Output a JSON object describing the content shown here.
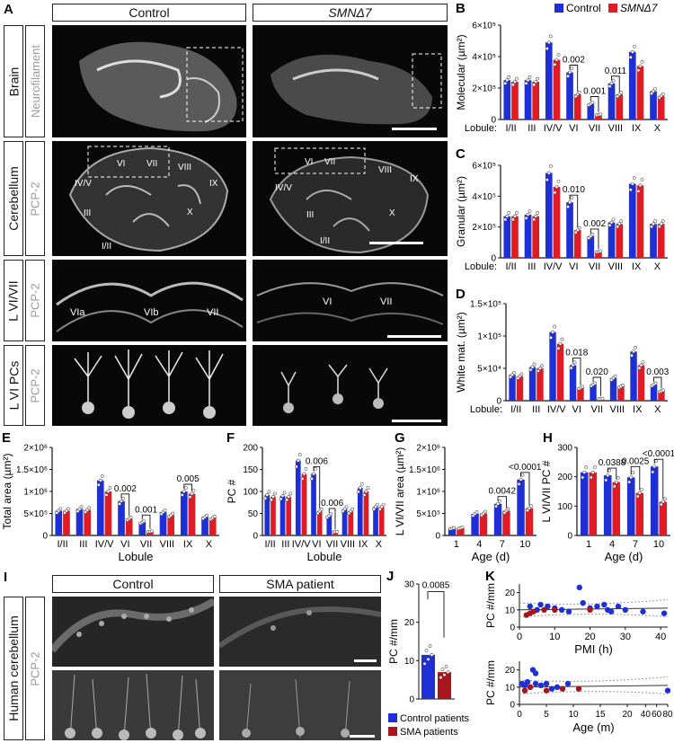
{
  "panels": {
    "A": {
      "label": "A",
      "columns": [
        "Control",
        "SMNΔ7"
      ],
      "rows": [
        {
          "region": "Brain",
          "stain": "Neurofilament"
        },
        {
          "region": "Cerebellum",
          "stain": "PCP-2"
        },
        {
          "region": "L VI/VII",
          "stain": "PCP-2"
        },
        {
          "region": "L VI PCs",
          "stain": "PCP-2"
        }
      ],
      "cerebellum_control_labels": [
        "VI",
        "VII",
        "VIII",
        "IV/V",
        "IX",
        "III",
        "X",
        "I/II"
      ],
      "cerebellum_smn_labels": [
        "VI",
        "VII",
        "VIII",
        "IV/V",
        "IX",
        "III",
        "X",
        "I/II"
      ],
      "lobule_control_labels": [
        "VIa",
        "VIb",
        "VII"
      ],
      "lobule_smn_labels": [
        "VI",
        "VII"
      ]
    },
    "I": {
      "label": "I",
      "columns": [
        "Control",
        "SMA patient"
      ],
      "region": "Human cerebellum",
      "stain": "PCP-2"
    }
  },
  "colors": {
    "control": "#1f2fd6",
    "smn": "#e01b24",
    "sma_patient": "#a8161b"
  },
  "chart_data": [
    {
      "id": "B",
      "label": "B",
      "type": "bar",
      "legend": [
        "Control",
        "SMNΔ7"
      ],
      "ylabel": "Molecular (µm²)",
      "xlabel_prefix": "Lobule:",
      "categories": [
        "I/II",
        "III",
        "IV/V",
        "VI",
        "VII",
        "VIII",
        "IX",
        "X"
      ],
      "yticks": [
        "0",
        "2×10⁵",
        "4×10⁵",
        "6×10⁵"
      ],
      "ylim": [
        0,
        600000
      ],
      "series": [
        {
          "name": "Control",
          "values": [
            250000,
            250000,
            490000,
            300000,
            100000,
            230000,
            430000,
            180000
          ]
        },
        {
          "name": "SMNΔ7",
          "values": [
            240000,
            240000,
            380000,
            160000,
            30000,
            160000,
            340000,
            150000
          ]
        }
      ],
      "pvalues": [
        {
          "cat": 3,
          "text": "0.002"
        },
        {
          "cat": 4,
          "text": "0.001"
        },
        {
          "cat": 5,
          "text": "0.011"
        }
      ]
    },
    {
      "id": "C",
      "label": "C",
      "type": "bar",
      "ylabel": "Granular (µm²)",
      "xlabel_prefix": "Lobule:",
      "categories": [
        "I/II",
        "III",
        "IV/V",
        "VI",
        "VII",
        "VIII",
        "IX",
        "X"
      ],
      "yticks": [
        "0",
        "2×10⁵",
        "4×10⁵",
        "6×10⁵"
      ],
      "ylim": [
        0,
        600000
      ],
      "series": [
        {
          "name": "Control",
          "values": [
            270000,
            280000,
            550000,
            360000,
            140000,
            230000,
            480000,
            220000
          ]
        },
        {
          "name": "SMNΔ7",
          "values": [
            270000,
            270000,
            460000,
            180000,
            40000,
            220000,
            470000,
            220000
          ]
        }
      ],
      "pvalues": [
        {
          "cat": 3,
          "text": "0.010"
        },
        {
          "cat": 4,
          "text": "0.002"
        }
      ]
    },
    {
      "id": "D",
      "label": "D",
      "type": "bar",
      "ylabel": "White mat. (µm²)",
      "xlabel_prefix": "Lobule:",
      "categories": [
        "I/II",
        "III",
        "IV/V",
        "VI",
        "VII",
        "VIII",
        "IX",
        "X"
      ],
      "yticks": [
        "0",
        "5×10⁴",
        "1×10⁵",
        "1.5×10⁵"
      ],
      "ylim": [
        0,
        150000
      ],
      "series": [
        {
          "name": "Control",
          "values": [
            40000,
            52000,
            106000,
            55000,
            25000,
            35000,
            76000,
            25000
          ]
        },
        {
          "name": "SMNΔ7",
          "values": [
            38000,
            50000,
            88000,
            20000,
            3000,
            22000,
            55000,
            15000
          ]
        }
      ],
      "pvalues": [
        {
          "cat": 3,
          "text": "0.018"
        },
        {
          "cat": 4,
          "text": "0.020"
        },
        {
          "cat": 7,
          "text": "0.003"
        }
      ]
    },
    {
      "id": "E",
      "label": "E",
      "type": "bar",
      "ylabel": "Total area (µm²)",
      "xlabel": "Lobule",
      "categories": [
        "I/II",
        "III",
        "IV/V",
        "VI",
        "VII",
        "VIII",
        "IX",
        "X"
      ],
      "yticks": [
        "0",
        "5×10⁵",
        "1×10⁶",
        "1.5×10⁶",
        "2×10⁶"
      ],
      "ylim": [
        0,
        2000000
      ],
      "series": [
        {
          "name": "Control",
          "values": [
            560000,
            600000,
            1250000,
            780000,
            300000,
            530000,
            1000000,
            420000
          ]
        },
        {
          "name": "SMNΔ7",
          "values": [
            560000,
            580000,
            1000000,
            380000,
            90000,
            460000,
            950000,
            400000
          ]
        }
      ],
      "pvalues": [
        {
          "cat": 3,
          "text": "0.002"
        },
        {
          "cat": 4,
          "text": "0.001"
        },
        {
          "cat": 6,
          "text": "0.005"
        }
      ]
    },
    {
      "id": "F",
      "label": "F",
      "type": "bar",
      "ylabel": "PC #",
      "xlabel": "Lobule",
      "categories": [
        "I/II",
        "III",
        "IV/V",
        "VI",
        "VII",
        "VIII",
        "IX",
        "X"
      ],
      "yticks": [
        "0",
        "50",
        "100",
        "150",
        "200"
      ],
      "ylim": [
        0,
        200
      ],
      "series": [
        {
          "name": "Control",
          "values": [
            92,
            90,
            170,
            140,
            45,
            60,
            108,
            65
          ]
        },
        {
          "name": "SMNΔ7",
          "values": [
            88,
            88,
            140,
            55,
            8,
            55,
            100,
            65
          ]
        }
      ],
      "pvalues": [
        {
          "cat": 3,
          "text": "0.006"
        },
        {
          "cat": 4,
          "text": "0.006"
        }
      ]
    },
    {
      "id": "G",
      "label": "G",
      "type": "bar",
      "ylabel": "L VI/VII area (µm²)",
      "xlabel": "Age (d)",
      "categories": [
        "1",
        "4",
        "7",
        "10"
      ],
      "yticks": [
        "0",
        "5×10⁵",
        "1×10⁶",
        "1.5×10⁶",
        "2×10⁶"
      ],
      "ylim": [
        0,
        2000000
      ],
      "series": [
        {
          "name": "Control",
          "values": [
            160000,
            490000,
            720000,
            1270000
          ]
        },
        {
          "name": "SMNΔ7",
          "values": [
            170000,
            500000,
            560000,
            620000
          ]
        }
      ],
      "pvalues": [
        {
          "cat": 2,
          "text": "0.0042"
        },
        {
          "cat": 3,
          "text": "<0.0001"
        }
      ]
    },
    {
      "id": "H",
      "label": "H",
      "type": "bar",
      "ylabel": "L VI/VII PC #",
      "xlabel": "Age (d)",
      "categories": [
        "1",
        "4",
        "7",
        "10"
      ],
      "yticks": [
        "0",
        "100",
        "200",
        "300"
      ],
      "ylim": [
        0,
        300
      ],
      "series": [
        {
          "name": "Control",
          "values": [
            215,
            205,
            198,
            235
          ]
        },
        {
          "name": "SMNΔ7",
          "values": [
            215,
            182,
            145,
            115
          ]
        }
      ],
      "pvalues": [
        {
          "cat": 1,
          "text": "0.0388"
        },
        {
          "cat": 2,
          "text": "0.0025"
        },
        {
          "cat": 3,
          "text": "<0.0001"
        }
      ]
    },
    {
      "id": "J",
      "label": "J",
      "type": "bar",
      "ylabel": "PC #/mm",
      "categories": [
        "Control patients",
        "SMA patients"
      ],
      "yticks": [
        "0",
        "5",
        "10",
        "15",
        "20",
        "25",
        "30"
      ],
      "ylim": [
        0,
        30
      ],
      "values": [
        11.5,
        7.0
      ],
      "pvalue": "0.0085",
      "legend": [
        "Control patients",
        "SMA patients"
      ]
    },
    {
      "id": "K1",
      "label": "K",
      "type": "scatter",
      "ylabel": "PC #/mm",
      "xlabel": "PMI (h)",
      "xticks": [
        "0",
        "10",
        "20",
        "30",
        "40"
      ],
      "yticks": [
        "0",
        "10",
        "20"
      ],
      "xlim": [
        0,
        42
      ],
      "ylim": [
        0,
        25
      ],
      "series": [
        {
          "name": "Control patients",
          "points": [
            [
              3,
              12
            ],
            [
              5,
              10
            ],
            [
              6,
              13
            ],
            [
              8,
              12
            ],
            [
              10,
              11
            ],
            [
              12,
              10
            ],
            [
              14,
              9
            ],
            [
              17,
              23
            ],
            [
              18,
              14
            ],
            [
              20,
              11
            ],
            [
              22,
              12
            ],
            [
              24,
              13
            ],
            [
              25,
              10
            ],
            [
              26,
              9
            ],
            [
              28,
              12
            ],
            [
              30,
              10
            ],
            [
              35,
              9
            ],
            [
              41,
              8
            ]
          ]
        },
        {
          "name": "SMA patients",
          "points": [
            [
              2,
              7
            ],
            [
              3,
              8
            ],
            [
              4,
              9
            ],
            [
              7,
              10
            ],
            [
              10,
              10
            ],
            [
              20,
              10
            ]
          ]
        }
      ]
    },
    {
      "id": "K2",
      "type": "scatter",
      "ylabel": "PC #/mm",
      "xlabel": "Age (m)",
      "xticks": [
        "0",
        "5",
        "10",
        "15",
        "20",
        "40",
        "60",
        "80"
      ],
      "yticks": [
        "0",
        "10",
        "20"
      ],
      "ylim": [
        0,
        25
      ],
      "series": [
        {
          "name": "Control patients",
          "points": [
            [
              0.5,
              12
            ],
            [
              1,
              11
            ],
            [
              1.5,
              13
            ],
            [
              2,
              10
            ],
            [
              2.5,
              20
            ],
            [
              3,
              18
            ],
            [
              3,
              12
            ],
            [
              4,
              11
            ],
            [
              5,
              12
            ],
            [
              6,
              9
            ],
            [
              7,
              10
            ],
            [
              9,
              12
            ],
            [
              80,
              8
            ]
          ]
        },
        {
          "name": "SMA patients",
          "points": [
            [
              1,
              8
            ],
            [
              2,
              10
            ],
            [
              5,
              8
            ],
            [
              8,
              9
            ],
            [
              11,
              9
            ]
          ]
        }
      ]
    }
  ]
}
